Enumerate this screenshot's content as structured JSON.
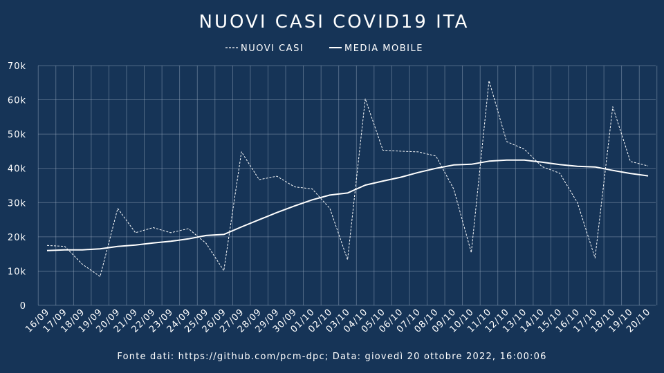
{
  "colors": {
    "background": "#163457",
    "line": "#ffffff",
    "grid": "#9fb0c4"
  },
  "chart_data": {
    "type": "line",
    "title": "NUOVI CASI COVID19 ITA",
    "legend_position": "top-center",
    "grid": true,
    "categories": [
      "16/09",
      "17/09",
      "18/09",
      "19/09",
      "20/09",
      "21/09",
      "22/09",
      "23/09",
      "24/09",
      "25/09",
      "26/09",
      "27/09",
      "28/09",
      "29/09",
      "30/09",
      "01/10",
      "02/10",
      "03/10",
      "04/10",
      "05/10",
      "06/10",
      "07/10",
      "08/10",
      "09/10",
      "10/10",
      "11/10",
      "12/10",
      "13/10",
      "14/10",
      "15/10",
      "16/10",
      "17/10",
      "18/10",
      "19/10",
      "20/10"
    ],
    "ylim": [
      0,
      70000
    ],
    "y_ticks": [
      0,
      10000,
      20000,
      30000,
      40000,
      50000,
      60000,
      70000
    ],
    "y_tick_labels": [
      "0",
      "10k",
      "20k",
      "30k",
      "40k",
      "50k",
      "60k",
      "70k"
    ],
    "series": [
      {
        "name": "NUOVI CASI",
        "style": "dashed",
        "values": [
          17500,
          17200,
          12000,
          8400,
          28300,
          21200,
          22700,
          21200,
          22400,
          18100,
          10100,
          44800,
          36700,
          37700,
          34600,
          34000,
          28300,
          13300,
          60300,
          45300,
          45000,
          44800,
          43600,
          34000,
          15400,
          65600,
          47800,
          45600,
          40500,
          38600,
          30000,
          13800,
          58000,
          42000,
          40700
        ]
      },
      {
        "name": "MEDIA MOBILE",
        "style": "solid",
        "values": [
          16000,
          16200,
          16200,
          16500,
          17200,
          17600,
          18200,
          18700,
          19400,
          20400,
          20700,
          22900,
          25000,
          27100,
          29000,
          30800,
          32200,
          32800,
          35100,
          36300,
          37400,
          38800,
          40000,
          41000,
          41200,
          42100,
          42400,
          42400,
          41800,
          41100,
          40600,
          40400,
          39400,
          38500,
          37800
        ]
      }
    ],
    "footer": "Fonte dati: https://github.com/pcm-dpc; Data: giovedì 20 ottobre 2022, 16:00:06"
  }
}
